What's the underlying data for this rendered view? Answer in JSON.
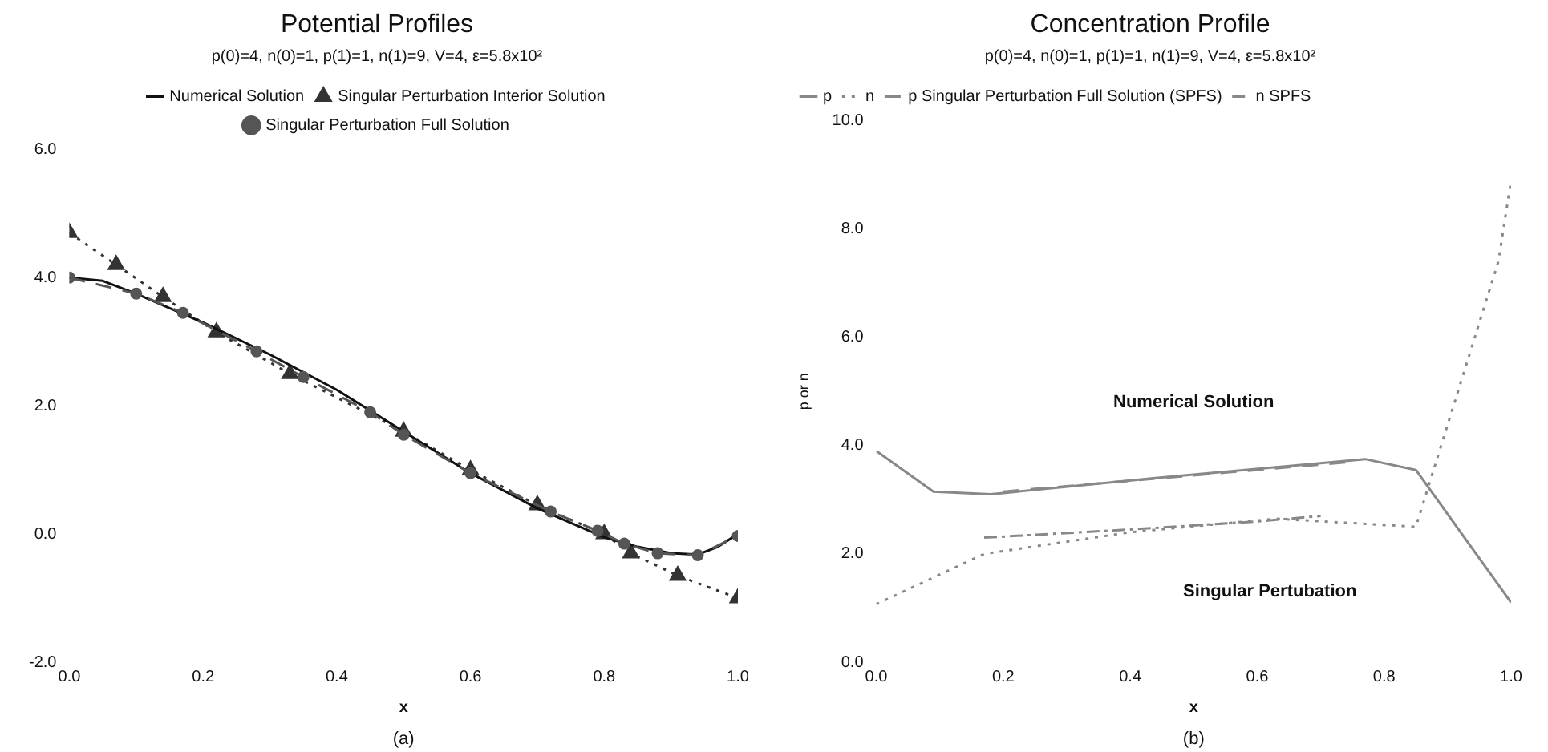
{
  "chart_data": [
    {
      "type": "line",
      "title": "Potential Profiles",
      "subtitle": "p(0)=4, n(0)=1, p(1)=1, n(1)=9, V=4, ε=5.8x10²",
      "xlabel": "x",
      "annotations": [
        "(a)"
      ],
      "series": [
        {
          "name": "Numerical Solution",
          "color": "#111111",
          "line_style": "solid",
          "marker": "none",
          "x": [
            0,
            0.05,
            0.1,
            0.2,
            0.3,
            0.4,
            0.5,
            0.6,
            0.7,
            0.8,
            0.85,
            0.9,
            0.94,
            0.97,
            1.0
          ],
          "values": [
            4.0,
            3.95,
            3.75,
            3.3,
            2.8,
            2.25,
            1.6,
            0.95,
            0.4,
            -0.05,
            -0.2,
            -0.3,
            -0.32,
            -0.2,
            0.0
          ]
        },
        {
          "name": "Singular Perturbation Interior Solution",
          "color": "#333333",
          "line_style": "dotted",
          "marker": "triangle",
          "x": [
            0,
            0.07,
            0.14,
            0.22,
            0.33,
            0.5,
            0.6,
            0.7,
            0.8,
            0.84,
            0.91,
            1.0
          ],
          "values": [
            4.7,
            4.2,
            3.7,
            3.15,
            2.5,
            1.6,
            1.0,
            0.45,
            0.0,
            -0.3,
            -0.65,
            -1.0
          ]
        },
        {
          "name": "Singular Perturbation Full Solution",
          "color": "#555555",
          "line_style": "dashed",
          "marker": "circle",
          "x": [
            0,
            0.1,
            0.17,
            0.28,
            0.35,
            0.45,
            0.5,
            0.6,
            0.72,
            0.79,
            0.83,
            0.88,
            0.94,
            1.0
          ],
          "values": [
            4.0,
            3.75,
            3.45,
            2.85,
            2.45,
            1.9,
            1.55,
            0.95,
            0.35,
            0.05,
            -0.15,
            -0.3,
            -0.33,
            -0.03
          ]
        }
      ],
      "xlim": [
        0,
        1
      ],
      "xticks": [
        {
          "value": 0,
          "label": "0.0"
        },
        {
          "value": 0.2,
          "label": "0.2"
        },
        {
          "value": 0.4,
          "label": "0.4"
        },
        {
          "value": 0.6,
          "label": "0.6"
        },
        {
          "value": 0.8,
          "label": "0.8"
        },
        {
          "value": 1,
          "label": "1.0"
        }
      ],
      "ylim": [
        -2,
        6
      ],
      "yticks": [
        {
          "value": -2,
          "label": "-2.0"
        },
        {
          "value": 0,
          "label": "0.0"
        },
        {
          "value": 2,
          "label": "2.0"
        },
        {
          "value": 4,
          "label": "4.0"
        },
        {
          "value": 6,
          "label": "6.0"
        }
      ],
      "grid": false,
      "legend": "top"
    },
    {
      "type": "line",
      "title": "Concentration Profile",
      "subtitle": "p(0)=4, n(0)=1, p(1)=1, n(1)=9, V=4, ε=5.8x10²",
      "xlabel": "x",
      "ylabel": "p or n",
      "annotations": [
        "Numerical Solution",
        "Singular Pertubation",
        "(b)"
      ],
      "series": [
        {
          "name": "p",
          "color": "#888888",
          "line_style": "solid",
          "x": [
            0,
            0.09,
            0.18,
            0.44,
            0.77,
            0.85,
            1.0
          ],
          "values": [
            3.9,
            3.15,
            3.1,
            3.4,
            3.75,
            3.55,
            1.1
          ]
        },
        {
          "name": "n",
          "color": "#888888",
          "line_style": "dotted",
          "x": [
            0,
            0.17,
            0.4,
            0.63,
            0.85,
            0.98,
            1.0
          ],
          "values": [
            1.07,
            2.0,
            2.4,
            2.65,
            2.5,
            7.4,
            8.9
          ]
        },
        {
          "name": "p Singular Perturbation Full Solution (SPFS)",
          "color": "#888888",
          "line_style": "dashed",
          "x": [
            0.2,
            0.4,
            0.6,
            0.75
          ],
          "values": [
            3.15,
            3.35,
            3.55,
            3.7
          ]
        },
        {
          "name": "n SPFS",
          "color": "#888888",
          "line_style": "dashdot",
          "x": [
            0.17,
            0.4,
            0.6,
            0.7
          ],
          "values": [
            2.3,
            2.45,
            2.6,
            2.7
          ]
        }
      ],
      "xlim": [
        0,
        1
      ],
      "xticks": [
        {
          "value": 0,
          "label": "0.0"
        },
        {
          "value": 0.2,
          "label": "0.2"
        },
        {
          "value": 0.4,
          "label": "0.4"
        },
        {
          "value": 0.6,
          "label": "0.6"
        },
        {
          "value": 0.8,
          "label": "0.8"
        },
        {
          "value": 1,
          "label": "1.0"
        }
      ],
      "ylim": [
        0,
        10
      ],
      "yticks": [
        {
          "value": 0,
          "label": "0.0"
        },
        {
          "value": 2,
          "label": "2.0"
        },
        {
          "value": 4,
          "label": "4.0"
        },
        {
          "value": 6,
          "label": "6.0"
        },
        {
          "value": 8,
          "label": "8.0"
        },
        {
          "value": 10,
          "label": "10.0"
        }
      ],
      "grid": false,
      "legend": "top left"
    }
  ]
}
